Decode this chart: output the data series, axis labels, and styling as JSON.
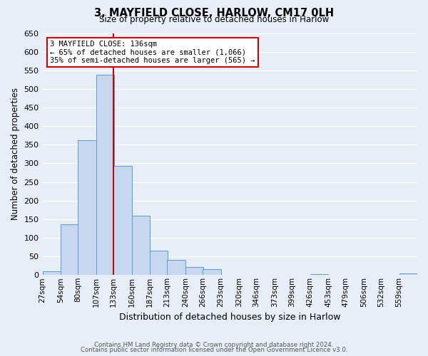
{
  "title": "3, MAYFIELD CLOSE, HARLOW, CM17 0LH",
  "subtitle": "Size of property relative to detached houses in Harlow",
  "xlabel": "Distribution of detached houses by size in Harlow",
  "ylabel": "Number of detached properties",
  "footnote1": "Contains HM Land Registry data © Crown copyright and database right 2024.",
  "footnote2": "Contains public sector information licensed under the Open Government Licence v3.0.",
  "bin_labels": [
    "27sqm",
    "54sqm",
    "80sqm",
    "107sqm",
    "133sqm",
    "160sqm",
    "187sqm",
    "213sqm",
    "240sqm",
    "266sqm",
    "293sqm",
    "320sqm",
    "346sqm",
    "373sqm",
    "399sqm",
    "426sqm",
    "453sqm",
    "479sqm",
    "506sqm",
    "532sqm",
    "559sqm"
  ],
  "bin_left_edges": [
    27,
    54,
    80,
    107,
    133,
    160,
    187,
    213,
    240,
    266,
    293,
    320,
    346,
    373,
    399,
    426,
    453,
    479,
    506,
    532,
    559
  ],
  "bin_width": 27,
  "bar_heights": [
    10,
    136,
    363,
    538,
    293,
    160,
    65,
    40,
    22,
    15,
    0,
    0,
    0,
    0,
    0,
    3,
    0,
    0,
    0,
    0,
    5
  ],
  "bar_color": "#c5d8f0",
  "bar_edge_color": "#5b9bd5",
  "vline_x": 133,
  "vline_color": "#cc0000",
  "annotation_title": "3 MAYFIELD CLOSE: 136sqm",
  "annotation_line1": "← 65% of detached houses are smaller (1,066)",
  "annotation_line2": "35% of semi-detached houses are larger (565) →",
  "annotation_box_color": "#cc0000",
  "ylim": [
    0,
    650
  ],
  "yticks": [
    0,
    50,
    100,
    150,
    200,
    250,
    300,
    350,
    400,
    450,
    500,
    550,
    600,
    650
  ],
  "background_color": "#e8eef8",
  "plot_bg_color": "#e8eef8",
  "grid_color": "#ffffff"
}
